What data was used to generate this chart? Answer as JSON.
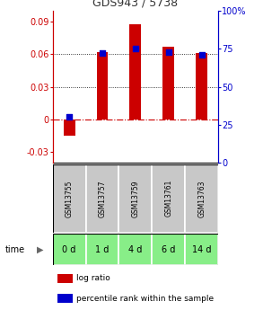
{
  "title": "GDS943 / 5738",
  "samples": [
    "GSM13755",
    "GSM13757",
    "GSM13759",
    "GSM13761",
    "GSM13763"
  ],
  "time_labels": [
    "0 d",
    "1 d",
    "4 d",
    "6 d",
    "14 d"
  ],
  "log_ratio": [
    -0.015,
    0.062,
    0.088,
    0.067,
    0.061
  ],
  "percentile_rank": [
    30,
    72,
    75,
    73,
    71
  ],
  "left_ylim": [
    -0.04,
    0.1
  ],
  "left_yticks": [
    -0.03,
    0,
    0.03,
    0.06,
    0.09
  ],
  "right_ylim": [
    0,
    100
  ],
  "right_yticks": [
    0,
    25,
    50,
    75,
    100
  ],
  "right_yticklabels": [
    "0",
    "25",
    "50",
    "75",
    "100%"
  ],
  "bar_color": "#cc0000",
  "dot_color": "#0000cc",
  "zero_line_color": "#cc0000",
  "grid_color": "#000000",
  "sample_bg_color": "#c8c8c8",
  "time_bg_color": "#88ee88",
  "time_label_color": "#000000",
  "title_color": "#333333",
  "left_axis_color": "#cc0000",
  "right_axis_color": "#0000cc",
  "bar_width": 0.35,
  "dot_size": 25
}
